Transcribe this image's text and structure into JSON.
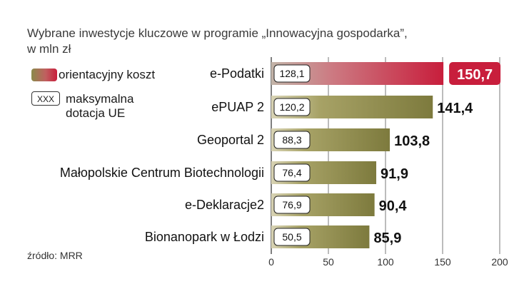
{
  "title_line1": "Wybrane inwestycje kluczowe w programie „Innowacyjna gospodarka”,",
  "title_line2": "w mln zł",
  "legend": {
    "cost_label": "orientacyjny koszt",
    "box_sample": "XXX",
    "max_label_line1": "maksymalna",
    "max_label_line2": "dotacja UE"
  },
  "source": "źródło: MRR",
  "colors": {
    "bar_olive": "#8a8645",
    "highlight_red": "#c81e3c",
    "grid": "#7a7a7a"
  },
  "chart_data": {
    "type": "bar",
    "orientation": "horizontal",
    "categories": [
      "e-Podatki",
      "ePUAP 2",
      "Geoportal 2",
      "Małopolskie Centrum Biotechnologii",
      "e-Deklaracje2",
      "Bionanopark w Łodzi"
    ],
    "series": [
      {
        "name": "orientacyjny koszt",
        "values": [
          150.7,
          141.4,
          103.8,
          91.9,
          90.4,
          85.9
        ],
        "labels": [
          "150,7",
          "141,4",
          "103,8",
          "91,9",
          "90,4",
          "85,9"
        ]
      },
      {
        "name": "maksymalna dotacja UE",
        "values": [
          128.1,
          120.2,
          88.3,
          76.4,
          76.9,
          50.5
        ],
        "labels": [
          "128,1",
          "120,2",
          "88,3",
          "76,4",
          "76,9",
          "50,5"
        ]
      }
    ],
    "xlim": [
      0,
      200
    ],
    "xticks": [
      0,
      50,
      100,
      150,
      200
    ],
    "xtick_labels": [
      "0",
      "50",
      "100",
      "150",
      "200"
    ],
    "highlight_index": 0,
    "grid": true
  }
}
